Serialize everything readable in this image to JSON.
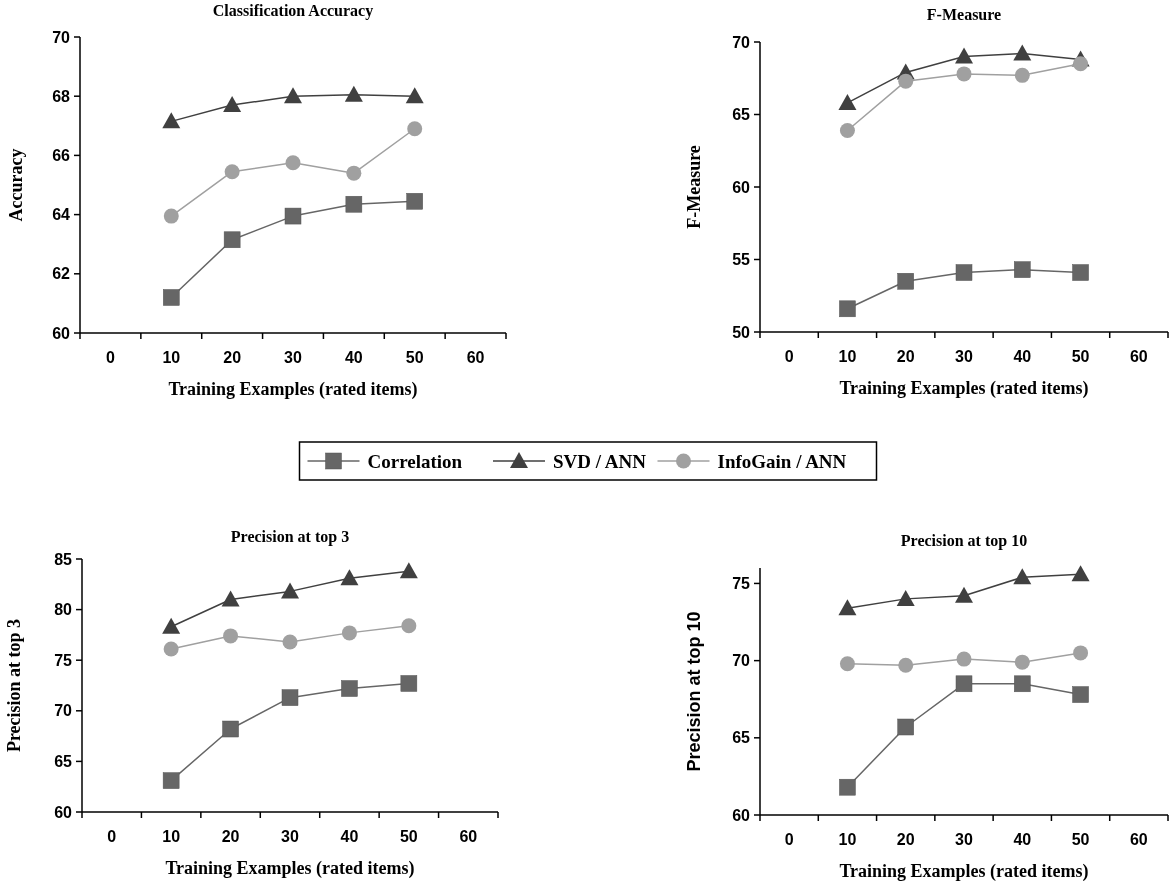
{
  "chart_data": [
    {
      "type": "line",
      "title": "Classification Accuracy",
      "xlabel": "Training Examples (rated items)",
      "ylabel": "Accuracy",
      "categories": [
        "0",
        "10",
        "20",
        "30",
        "40",
        "50",
        "60"
      ],
      "ylim": [
        60,
        70
      ],
      "yticks": [
        60,
        62,
        64,
        66,
        68,
        70
      ],
      "legend": "bottom",
      "series": [
        {
          "name": "Correlation",
          "color": "#666666",
          "marker": "square",
          "values": [
            null,
            61.2,
            63.15,
            63.95,
            64.35,
            64.45,
            null
          ]
        },
        {
          "name": "SVD / ANN",
          "color": "#404040",
          "marker": "triangle",
          "values": [
            null,
            67.15,
            67.7,
            68.0,
            68.05,
            68.0,
            null
          ]
        },
        {
          "name": "InfoGain / ANN",
          "color": "#a0a0a0",
          "marker": "circle",
          "values": [
            null,
            63.95,
            65.45,
            65.75,
            65.4,
            66.9,
            null
          ]
        }
      ]
    },
    {
      "type": "line",
      "title": "F-Measure",
      "xlabel": "Training Examples (rated items)",
      "ylabel": "F-Measure",
      "categories": [
        "0",
        "10",
        "20",
        "30",
        "40",
        "50",
        "60"
      ],
      "ylim": [
        50,
        70
      ],
      "yticks": [
        50,
        55,
        60,
        65,
        70
      ],
      "series": [
        {
          "color": "#666666",
          "marker": "square",
          "values": [
            null,
            51.6,
            53.5,
            54.1,
            54.3,
            54.1,
            null
          ]
        },
        {
          "color": "#404040",
          "marker": "triangle",
          "values": [
            null,
            65.8,
            67.9,
            69.0,
            69.2,
            68.8,
            null
          ]
        },
        {
          "color": "#a0a0a0",
          "marker": "circle",
          "values": [
            null,
            63.9,
            67.3,
            67.8,
            67.7,
            68.5,
            null
          ]
        }
      ]
    },
    {
      "type": "line",
      "title": "Precision at top 3",
      "xlabel": "Training Examples (rated items)",
      "ylabel": "Precision at top 3",
      "categories": [
        "0",
        "10",
        "20",
        "30",
        "40",
        "50",
        "60"
      ],
      "ylim": [
        60,
        85
      ],
      "yticks": [
        60,
        65,
        70,
        75,
        80,
        85
      ],
      "series": [
        {
          "color": "#666666",
          "marker": "square",
          "values": [
            null,
            63.1,
            68.2,
            71.3,
            72.2,
            72.7,
            null
          ]
        },
        {
          "color": "#404040",
          "marker": "triangle",
          "values": [
            null,
            78.3,
            81.0,
            81.8,
            83.1,
            83.8,
            null
          ]
        },
        {
          "color": "#a0a0a0",
          "marker": "circle",
          "values": [
            null,
            76.1,
            77.4,
            76.8,
            77.7,
            78.4,
            null
          ]
        }
      ]
    },
    {
      "type": "line",
      "title": "Precision at top 10",
      "xlabel": "Training Examples (rated items)",
      "ylabel": "Precision at top 10",
      "categories": [
        "0",
        "10",
        "20",
        "30",
        "40",
        "50",
        "60"
      ],
      "ylim": [
        60,
        76
      ],
      "yticks": [
        60,
        65,
        70,
        75
      ],
      "series": [
        {
          "color": "#666666",
          "marker": "square",
          "values": [
            null,
            61.8,
            65.7,
            68.5,
            68.5,
            67.8,
            null
          ]
        },
        {
          "color": "#404040",
          "marker": "triangle",
          "values": [
            null,
            73.4,
            74.0,
            74.2,
            75.4,
            75.6,
            null
          ]
        },
        {
          "color": "#a0a0a0",
          "marker": "circle",
          "values": [
            null,
            69.8,
            69.7,
            70.1,
            69.9,
            70.5,
            null
          ]
        }
      ]
    }
  ]
}
